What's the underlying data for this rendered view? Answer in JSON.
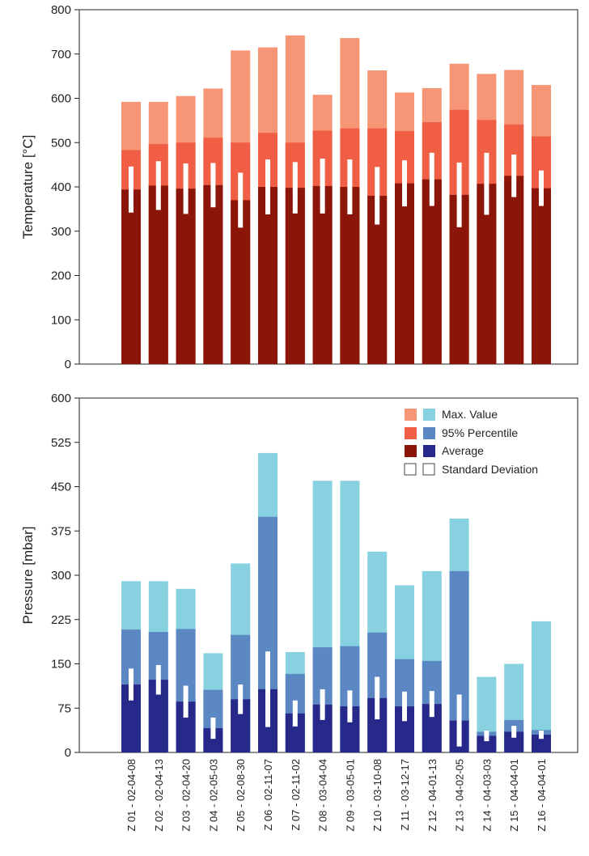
{
  "chart_data": [
    {
      "type": "bar",
      "ylabel": "Temperature [°C]",
      "ylim": [
        0,
        800
      ],
      "yticks": [
        0,
        100,
        200,
        300,
        400,
        500,
        600,
        700,
        800
      ],
      "categories": [
        "Z 01 - 02-04-08",
        "Z 02 - 02-04-13",
        "Z 03 - 02-04-20",
        "Z 04 - 02-05-03",
        "Z 05 - 02-08-30",
        "Z 06 - 02-11-07",
        "Z 07 - 02-11-02",
        "Z 08 - 03-04-04",
        "Z 09 - 03-05-01",
        "Z 10 - 03-10-08",
        "Z 11 - 03-12-17",
        "Z 12 - 04-01-13",
        "Z 13 - 04-02-05",
        "Z 14 - 04-03-03",
        "Z 15 - 04-04-01",
        "Z 16 - 04-04-01"
      ],
      "series": [
        {
          "name": "Max. Value",
          "values": [
            592,
            592,
            605,
            622,
            708,
            715,
            742,
            608,
            736,
            663,
            613,
            623,
            678,
            655,
            664,
            630
          ]
        },
        {
          "name": "95% Percentile",
          "values": [
            483,
            497,
            500,
            511,
            500,
            522,
            500,
            527,
            532,
            532,
            526,
            546,
            574,
            551,
            541,
            514
          ]
        },
        {
          "name": "Average",
          "values": [
            394,
            403,
            396,
            404,
            370,
            400,
            398,
            402,
            400,
            380,
            408,
            417,
            382,
            407,
            425,
            397
          ]
        },
        {
          "name": "Standard Deviation",
          "values": [
            52,
            55,
            57,
            50,
            62,
            62,
            58,
            62,
            62,
            65,
            52,
            60,
            73,
            70,
            48,
            40
          ]
        }
      ]
    },
    {
      "type": "bar",
      "ylabel": "Pressure [mbar]",
      "ylim": [
        0,
        600
      ],
      "yticks": [
        0,
        75,
        150,
        225,
        300,
        375,
        450,
        525,
        600
      ],
      "categories": [
        "Z 01 - 02-04-08",
        "Z 02 - 02-04-13",
        "Z 03 - 02-04-20",
        "Z 04 - 02-05-03",
        "Z 05 - 02-08-30",
        "Z 06 - 02-11-07",
        "Z 07 - 02-11-02",
        "Z 08 - 03-04-04",
        "Z 09 - 03-05-01",
        "Z 10 - 03-10-08",
        "Z 11 - 03-12-17",
        "Z 12 - 04-01-13",
        "Z 13 - 04-02-05",
        "Z 14 - 04-03-03",
        "Z 15 - 04-04-01",
        "Z 16 - 04-04-01"
      ],
      "series": [
        {
          "name": "Max. Value",
          "values": [
            290,
            290,
            277,
            168,
            320,
            507,
            170,
            460,
            460,
            340,
            283,
            307,
            396,
            128,
            150,
            222
          ]
        },
        {
          "name": "95% Percentile",
          "values": [
            208,
            204,
            209,
            106,
            199,
            399,
            133,
            178,
            180,
            203,
            158,
            155,
            307,
            35,
            55,
            38
          ]
        },
        {
          "name": "Average",
          "values": [
            115,
            123,
            86,
            41,
            90,
            107,
            66,
            81,
            78,
            92,
            78,
            82,
            54,
            28,
            35,
            30
          ]
        },
        {
          "name": "Standard Deviation",
          "values": [
            27,
            25,
            27,
            18,
            25,
            64,
            22,
            26,
            27,
            36,
            25,
            22,
            44,
            9,
            10,
            7
          ]
        }
      ]
    }
  ],
  "legend": {
    "items": [
      "Max. Value",
      "95% Percentile",
      "Average",
      "Standard Deviation"
    ]
  },
  "colors": {
    "temp_max": "#f79676",
    "temp_p95": "#f05f45",
    "temp_avg": "#8b1508",
    "pres_max": "#88d1e1",
    "pres_p95": "#5b87c3",
    "pres_avg": "#26288a",
    "std_dev": "#ffffff",
    "axis": "#222222"
  }
}
